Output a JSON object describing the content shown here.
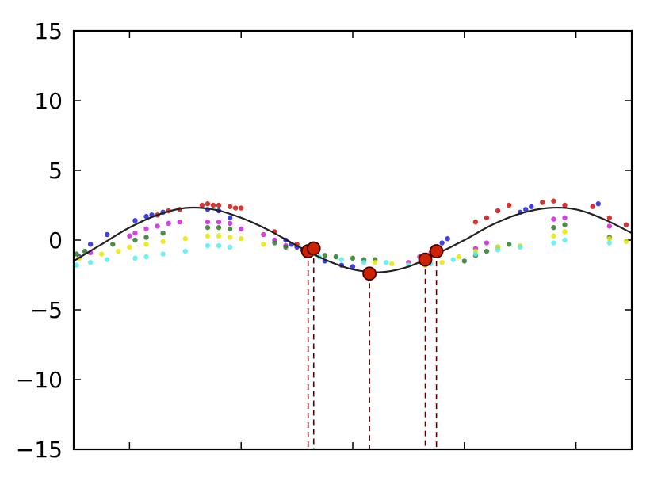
{
  "chart_data": {
    "type": "scatter",
    "title": "",
    "xlabel": "",
    "ylabel": "",
    "xlim": [
      0,
      10
    ],
    "ylim": [
      -15,
      15
    ],
    "yticks": [
      15,
      10,
      5,
      0,
      -5,
      -10,
      -15
    ],
    "ytick_labels": [
      "15",
      "10",
      "5",
      "0",
      "−5",
      "−10",
      "−15"
    ],
    "xticks": [
      1,
      3,
      5,
      7,
      9
    ],
    "xtick_labels": [
      "",
      "",
      "",
      "",
      ""
    ],
    "grid": false,
    "legend": "none",
    "curve": {
      "color": "#222222",
      "x": [
        0.0,
        0.5,
        1.0,
        1.5,
        2.0,
        2.5,
        3.0,
        3.5,
        4.0,
        4.5,
        5.0,
        5.5,
        6.0,
        6.5,
        7.0,
        7.5,
        8.0,
        8.5,
        9.0,
        9.5,
        10.0
      ],
      "y": [
        -1.5,
        -0.3,
        0.9,
        1.8,
        2.3,
        2.2,
        1.6,
        0.7,
        -0.4,
        -1.4,
        -2.1,
        -2.3,
        -1.9,
        -1.0,
        0.0,
        1.1,
        1.9,
        2.3,
        2.2,
        1.5,
        0.5
      ]
    },
    "highlighted_points": {
      "color": "#cc2200",
      "x": [
        4.2,
        4.3,
        5.3,
        6.3,
        6.5
      ],
      "y": [
        -0.8,
        -0.6,
        -2.4,
        -1.4,
        -0.8
      ]
    },
    "series": [
      {
        "color": "#1f1fdd",
        "x": [
          0.1,
          0.3,
          0.6,
          1.1,
          1.3,
          1.4,
          1.6,
          2.4,
          2.6,
          2.8,
          3.8,
          3.9,
          4.0,
          4.1,
          4.5,
          4.8,
          5.0,
          6.5,
          6.6,
          6.7,
          8.0,
          8.1,
          8.2,
          9.4
        ],
        "y": [
          -1.2,
          -0.3,
          0.4,
          1.4,
          1.7,
          1.8,
          2.0,
          2.2,
          2.1,
          1.6,
          0.0,
          -0.3,
          -0.5,
          -0.7,
          -1.5,
          -1.8,
          -1.9,
          -0.6,
          -0.2,
          0.1,
          2.0,
          2.2,
          2.4,
          2.6
        ]
      },
      {
        "color": "#d01010",
        "x": [
          1.5,
          1.7,
          1.9,
          2.3,
          2.4,
          2.5,
          2.6,
          2.8,
          2.9,
          3.0,
          3.6,
          4.0,
          7.2,
          7.4,
          7.6,
          7.8,
          8.4,
          8.6,
          8.8,
          9.3,
          9.6,
          9.9
        ],
        "y": [
          1.8,
          2.1,
          2.2,
          2.5,
          2.6,
          2.5,
          2.5,
          2.4,
          2.3,
          2.3,
          0.6,
          -0.3,
          1.3,
          1.6,
          2.1,
          2.5,
          2.7,
          2.8,
          2.5,
          2.4,
          1.6,
          1.1
        ]
      },
      {
        "color": "#cc22dd",
        "x": [
          0.3,
          1.0,
          1.1,
          1.3,
          1.5,
          1.7,
          1.9,
          2.4,
          2.6,
          2.8,
          3.0,
          3.4,
          3.6,
          3.8,
          6.0,
          6.2,
          6.4,
          7.2,
          7.4,
          8.6,
          8.8,
          9.6
        ],
        "y": [
          -0.9,
          0.3,
          0.5,
          0.8,
          1.0,
          1.2,
          1.3,
          1.3,
          1.3,
          1.2,
          0.8,
          0.4,
          0.0,
          -0.4,
          -1.6,
          -1.2,
          -0.9,
          -0.6,
          -0.2,
          1.5,
          1.6,
          1.0
        ]
      },
      {
        "color": "#2e7a2e",
        "x": [
          0.05,
          0.2,
          0.7,
          1.1,
          1.3,
          1.6,
          2.4,
          2.6,
          2.8,
          3.6,
          3.8,
          4.5,
          4.7,
          5.0,
          5.2,
          5.4,
          7.0,
          7.2,
          7.4,
          7.6,
          7.8,
          8.6,
          8.8,
          9.6
        ],
        "y": [
          -1.0,
          -0.8,
          -0.3,
          0.0,
          0.2,
          0.5,
          0.9,
          0.9,
          0.8,
          -0.2,
          -0.5,
          -1.1,
          -1.2,
          -1.3,
          -1.4,
          -1.4,
          -1.5,
          -1.1,
          -0.8,
          -0.5,
          -0.3,
          0.9,
          1.1,
          0.2
        ]
      },
      {
        "color": "#e6e600",
        "x": [
          0.1,
          0.5,
          0.8,
          1.0,
          1.3,
          1.6,
          2.0,
          2.4,
          2.6,
          2.8,
          3.0,
          3.4,
          5.4,
          5.7,
          6.0,
          6.3,
          6.6,
          6.9,
          7.2,
          7.6,
          8.0,
          8.6,
          8.8,
          9.6,
          9.9
        ],
        "y": [
          -1.3,
          -1.0,
          -0.8,
          -0.5,
          -0.3,
          -0.1,
          0.1,
          0.3,
          0.3,
          0.2,
          0.1,
          -0.3,
          -1.6,
          -1.7,
          -1.8,
          -1.8,
          -1.6,
          -1.2,
          -0.8,
          -0.5,
          -0.4,
          0.3,
          0.6,
          0.1,
          -0.1
        ]
      },
      {
        "color": "#55eeee",
        "x": [
          0.05,
          0.3,
          0.6,
          1.1,
          1.3,
          1.6,
          2.0,
          2.4,
          2.6,
          2.8,
          4.4,
          4.8,
          5.2,
          5.6,
          6.0,
          6.4,
          6.8,
          7.2,
          7.6,
          8.0,
          8.6,
          8.8,
          9.6
        ],
        "y": [
          -1.8,
          -1.6,
          -1.4,
          -1.3,
          -1.2,
          -1.0,
          -0.8,
          -0.4,
          -0.4,
          -0.5,
          -1.2,
          -1.4,
          -1.6,
          -1.6,
          -1.8,
          -1.7,
          -1.4,
          -1.0,
          -0.7,
          -0.5,
          -0.2,
          0.0,
          -0.2
        ]
      }
    ]
  }
}
